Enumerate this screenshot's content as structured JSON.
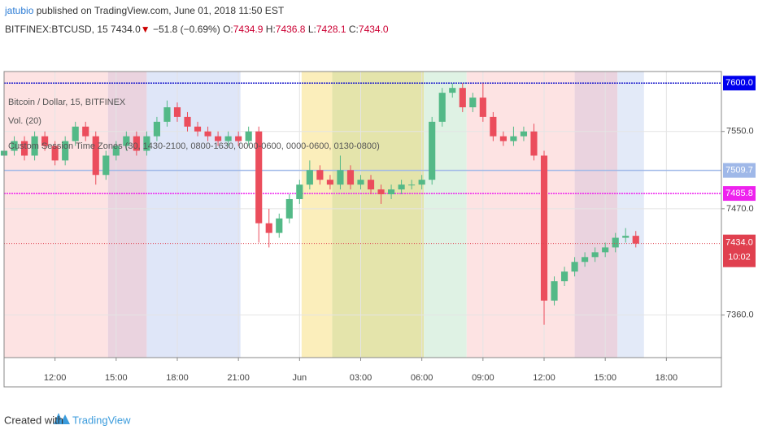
{
  "header": {
    "author": "jatubio",
    "published": "published on TradingView.com, June 01, 2018 11:50 EST"
  },
  "symbol": {
    "name": "BITFINEX:BTCUSD, 15",
    "price": "7434.0",
    "arrow": "▼",
    "change": "−51.8 (−0.69%)",
    "o_label": "O:",
    "o": "7434.9",
    "h_label": "H:",
    "h": "7436.8",
    "l_label": "L:",
    "l": "7428.1",
    "c_label": "C:",
    "c": "7434.0"
  },
  "legend": [
    "Bitcoin / Dollar, 15, BITFINEX",
    "Vol. (20)",
    "Custom Session Time Zones (30, 1430-2100, 0800-1630, 0000-0600, 0000-0600, 0130-0800)"
  ],
  "chart_data": {
    "type": "candlestick",
    "x": [
      9.5,
      10,
      10.5,
      11,
      11.5,
      12,
      12.5,
      13,
      13.5,
      14,
      14.5,
      15,
      15.5,
      16,
      16.5,
      17,
      17.5,
      18,
      18.5,
      19,
      19.5,
      20,
      20.5,
      21,
      21.5,
      22,
      22.5,
      23,
      23.5,
      24,
      24.5,
      25,
      25.5,
      26,
      26.5,
      27,
      27.5,
      28,
      28.5,
      29,
      29.5,
      30,
      30.5,
      31,
      31.5,
      32,
      32.5,
      33,
      33.5,
      34,
      34.5,
      35,
      35.5,
      36,
      36.5,
      37,
      37.5,
      38,
      38.5,
      39,
      39.5,
      40,
      40.5
    ],
    "open": [
      7525,
      7530,
      7540,
      7525,
      7545,
      7535,
      7520,
      7540,
      7555,
      7545,
      7505,
      7525,
      7535,
      7545,
      7530,
      7545,
      7560,
      7575,
      7565,
      7555,
      7550,
      7545,
      7540,
      7545,
      7540,
      7550,
      7455,
      7445,
      7460,
      7480,
      7495,
      7510,
      7500,
      7495,
      7510,
      7495,
      7500,
      7490,
      7485,
      7490,
      7495,
      7495,
      7500,
      7560,
      7590,
      7595,
      7575,
      7585,
      7565,
      7545,
      7540,
      7545,
      7550,
      7525,
      7375,
      7395,
      7405,
      7415,
      7420,
      7425,
      7430,
      7440,
      7442
    ],
    "high": [
      7535,
      7545,
      7545,
      7550,
      7550,
      7540,
      7545,
      7560,
      7560,
      7550,
      7530,
      7540,
      7550,
      7550,
      7550,
      7565,
      7582,
      7580,
      7570,
      7560,
      7555,
      7550,
      7550,
      7550,
      7555,
      7555,
      7470,
      7465,
      7485,
      7500,
      7520,
      7515,
      7505,
      7525,
      7515,
      7505,
      7505,
      7495,
      7495,
      7500,
      7500,
      7505,
      7565,
      7595,
      7600,
      7600,
      7590,
      7600,
      7570,
      7550,
      7555,
      7555,
      7558,
      7530,
      7400,
      7410,
      7420,
      7425,
      7430,
      7435,
      7445,
      7450,
      7447
    ],
    "low": [
      7520,
      7525,
      7520,
      7520,
      7530,
      7515,
      7515,
      7535,
      7540,
      7495,
      7500,
      7520,
      7530,
      7525,
      7525,
      7540,
      7555,
      7560,
      7550,
      7545,
      7540,
      7535,
      7535,
      7535,
      7535,
      7435,
      7430,
      7440,
      7455,
      7475,
      7490,
      7495,
      7490,
      7490,
      7490,
      7490,
      7485,
      7475,
      7480,
      7485,
      7490,
      7490,
      7495,
      7555,
      7585,
      7570,
      7570,
      7560,
      7540,
      7535,
      7535,
      7540,
      7520,
      7350,
      7370,
      7390,
      7400,
      7410,
      7415,
      7420,
      7425,
      7435,
      7430
    ],
    "close": [
      7530,
      7540,
      7525,
      7545,
      7535,
      7520,
      7540,
      7555,
      7545,
      7505,
      7525,
      7535,
      7545,
      7530,
      7545,
      7560,
      7575,
      7565,
      7555,
      7550,
      7545,
      7540,
      7545,
      7540,
      7550,
      7455,
      7445,
      7460,
      7480,
      7495,
      7510,
      7500,
      7495,
      7510,
      7495,
      7500,
      7490,
      7485,
      7490,
      7495,
      7495,
      7500,
      7560,
      7590,
      7595,
      7575,
      7585,
      7565,
      7545,
      7540,
      7545,
      7550,
      7525,
      7375,
      7395,
      7405,
      7415,
      7420,
      7425,
      7430,
      7440,
      7442,
      7434
    ],
    "up_color": "#53b987",
    "down_color": "#eb4d5c",
    "sessions": [
      {
        "start": 9.5,
        "end": 14.6,
        "color": "#fde3e3"
      },
      {
        "start": 14.6,
        "end": 16.5,
        "color": "#ead3df"
      },
      {
        "start": 16.5,
        "end": 21.1,
        "color": "#dfe6f8"
      },
      {
        "start": 24.1,
        "end": 25.6,
        "color": "#fbeebb"
      },
      {
        "start": 25.6,
        "end": 30.1,
        "color": "#e4e4ab"
      },
      {
        "start": 30.1,
        "end": 32.2,
        "color": "#dff2e4"
      },
      {
        "start": 32.2,
        "end": 37.5,
        "color": "#fde3e3"
      },
      {
        "start": 37.5,
        "end": 39.6,
        "color": "#ead3df"
      },
      {
        "start": 39.6,
        "end": 40.9,
        "color": "#e3eaf8"
      }
    ],
    "lines": [
      {
        "value": 7600,
        "label": "7600.0",
        "color": "#1a1acc",
        "badge": "#0000ee"
      },
      {
        "value": 7509.7,
        "label": "7509.7",
        "color": "#9fb8e8",
        "badge": "#9fb8e8"
      },
      {
        "value": 7485.8,
        "label": "7485.8",
        "color": "#ee22ee",
        "badge": "#ee22ee"
      }
    ],
    "last": {
      "value": 7434,
      "label": "7434.0",
      "countdown": "10:02",
      "color": "#e0404f"
    },
    "xlim": [
      9.5,
      44.7
    ],
    "ylim": [
      7316,
      7612
    ],
    "xticks": [
      {
        "value": 12,
        "label": "12:00"
      },
      {
        "value": 15,
        "label": "15:00"
      },
      {
        "value": 18,
        "label": "18:00"
      },
      {
        "value": 21,
        "label": "21:00"
      },
      {
        "value": 24,
        "label": "Jun"
      },
      {
        "value": 27,
        "label": "03:00"
      },
      {
        "value": 30,
        "label": "06:00"
      },
      {
        "value": 33,
        "label": "09:00"
      },
      {
        "value": 36,
        "label": "12:00"
      },
      {
        "value": 39,
        "label": "15:00"
      },
      {
        "value": 42,
        "label": "18:00"
      }
    ],
    "yticks": [
      {
        "value": 7360,
        "label": "7360.0"
      },
      {
        "value": 7470,
        "label": "7470.0"
      },
      {
        "value": 7550,
        "label": "7550.0"
      }
    ],
    "grid": true
  },
  "footer": {
    "created": "Created with",
    "brand": "TradingView"
  }
}
